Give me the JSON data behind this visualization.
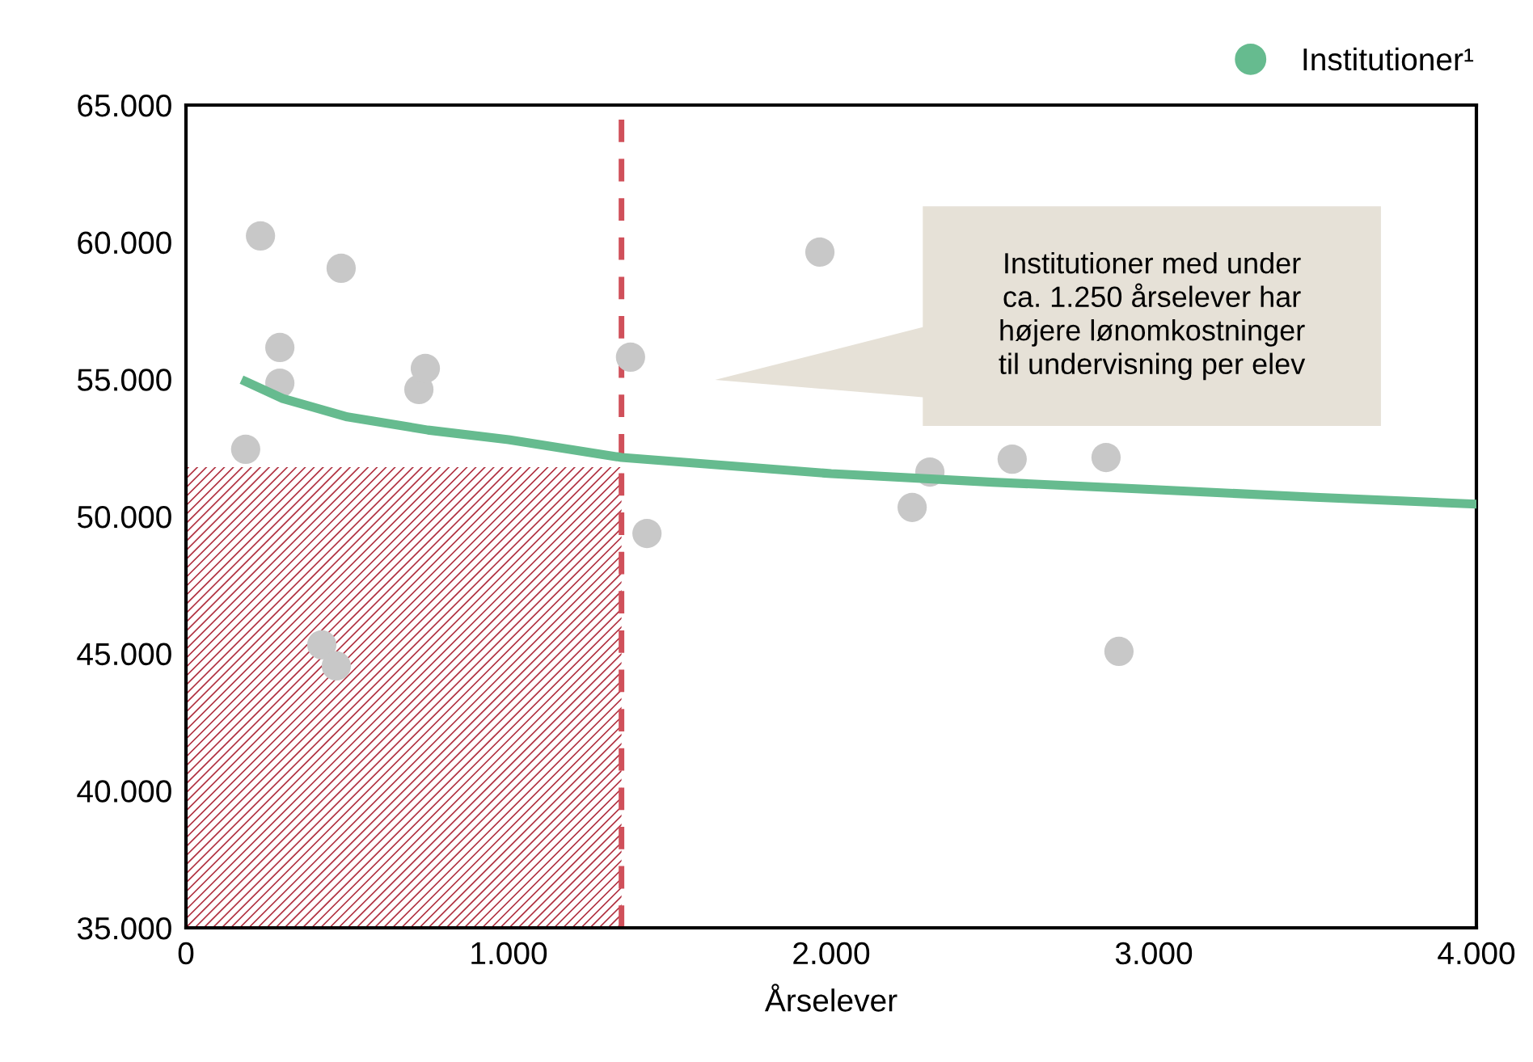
{
  "chart_data": {
    "type": "scatter",
    "xlabel": "Årselever",
    "xlim": [
      0,
      4000
    ],
    "ylim": [
      35000,
      65000
    ],
    "xticks": [
      0,
      {
        "value": 1000,
        "label": "1.000"
      },
      {
        "value": 2000,
        "label": "2.000"
      },
      {
        "value": 3000,
        "label": "3.000"
      },
      {
        "value": 4000,
        "label": "4.000"
      }
    ],
    "yticks": [
      {
        "value": 35000,
        "label": "35.000"
      },
      {
        "value": 40000,
        "label": "40.000"
      },
      {
        "value": 45000,
        "label": "45.000"
      },
      {
        "value": 50000,
        "label": "50.000"
      },
      {
        "value": 55000,
        "label": "55.000"
      },
      {
        "value": 60000,
        "label": "60.000"
      },
      {
        "value": 65000,
        "label": "65.000"
      }
    ],
    "grid": false,
    "legend": "top right",
    "marker": "circle",
    "series": [
      {
        "color": "#c8c8c8",
        "x": [
          185,
          231,
          291,
          291,
          481,
          722,
          742,
          421,
          466,
          1378,
          1429,
          1965,
          2251,
          2306,
          2561,
          2852,
          2892
        ],
        "values": [
          52450,
          60230,
          56160,
          54860,
          59050,
          54630,
          55400,
          45320,
          44550,
          55810,
          49380,
          59640,
          50330,
          51620,
          52090,
          52150,
          45080
        ]
      },
      {
        "type": "line",
        "name": "Institutioner¹",
        "color": "#66bb8f",
        "marker": "none",
        "x": [
          185,
          300,
          500,
          750,
          1000,
          1350,
          2000,
          2500,
          3000,
          3500,
          4000
        ],
        "values": [
          54920,
          54300,
          53630,
          53150,
          52800,
          52150,
          51560,
          51250,
          50980,
          50700,
          50450
        ]
      }
    ],
    "ref_lines": [
      {
        "axis": "x",
        "value": 1350,
        "color": "#d0505a",
        "line_style": "dashed"
      }
    ],
    "bands": [
      {
        "axis": "y",
        "from": 35000,
        "to": 51800,
        "color": "#b03040"
      }
    ],
    "annotations": [
      "Institutioner med under\nca. 1.250 årselever har\nhøjere lønomkostninger\ntil undervisning per elev"
    ]
  }
}
